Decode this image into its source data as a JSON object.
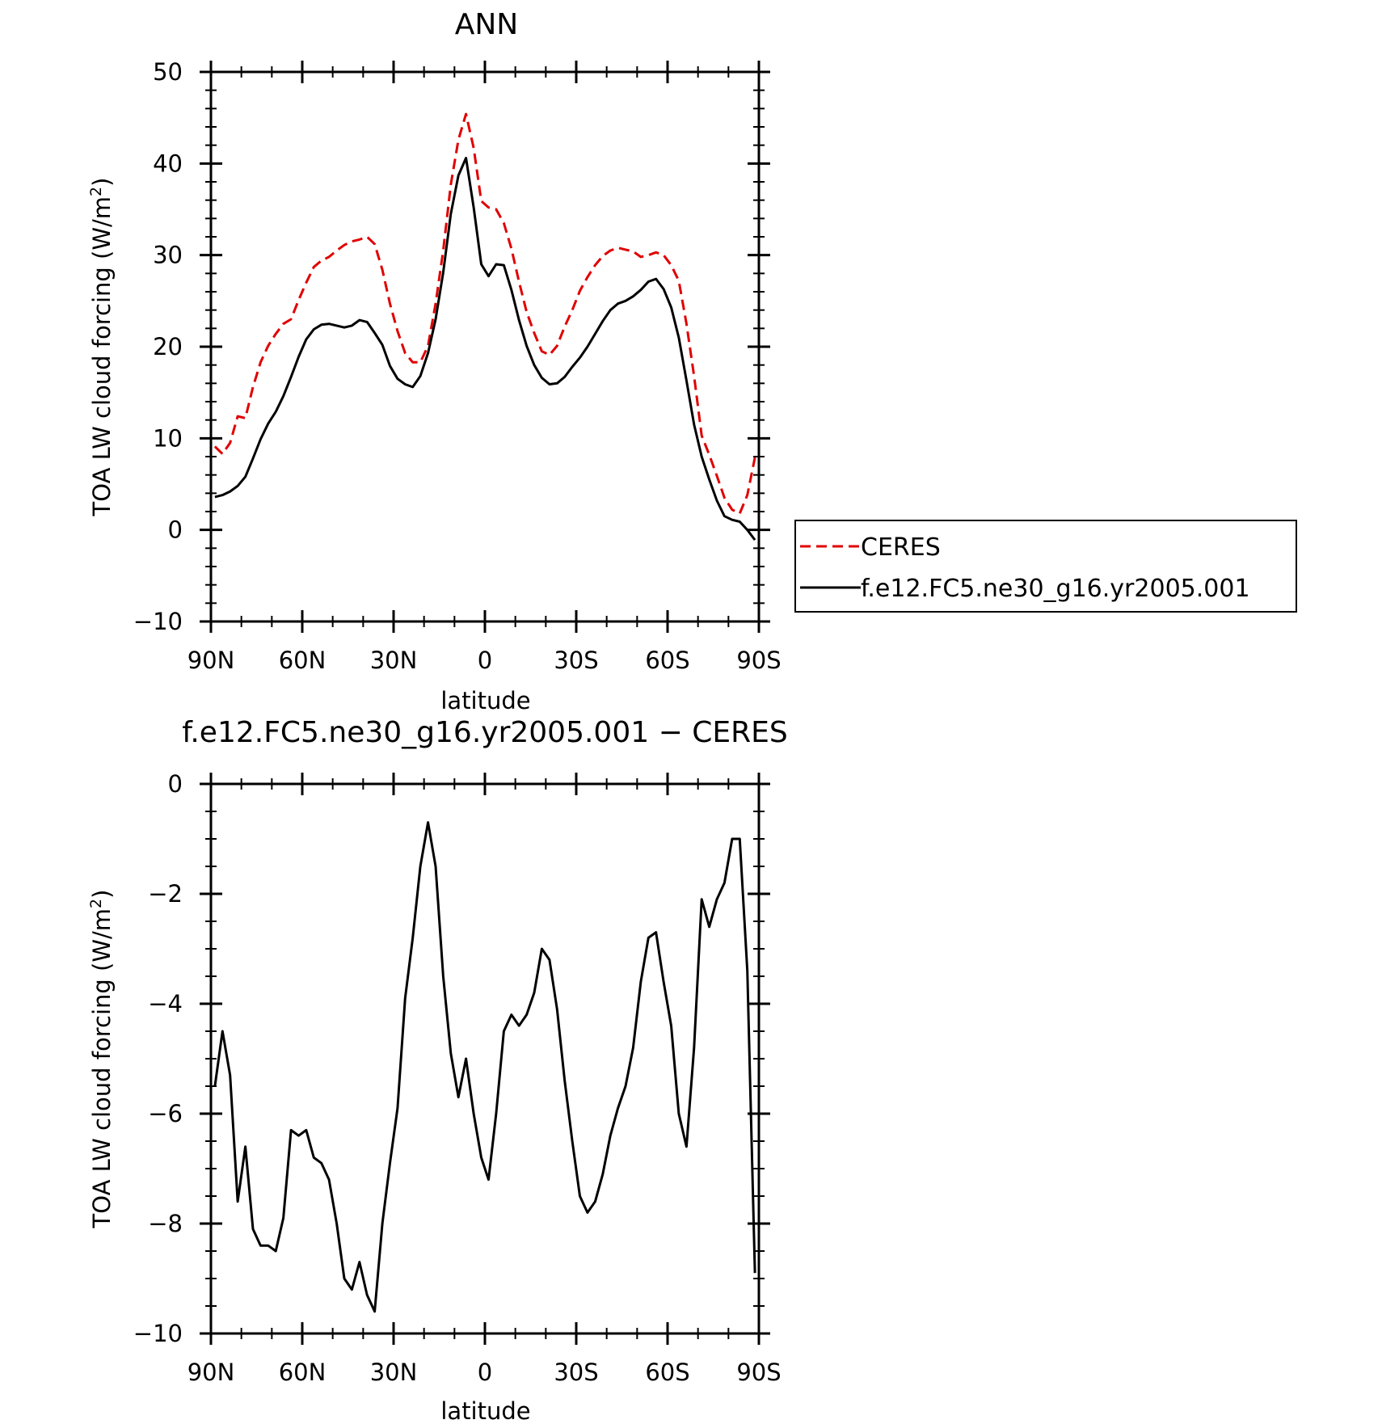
{
  "chart_data": [
    {
      "type": "line",
      "title": "ANN",
      "xlabel": "latitude",
      "ylabel": "TOA LW cloud forcing (W/m",
      "ylabel_superscript": "2",
      "ylabel_close": ")",
      "xlim": [
        90,
        -90
      ],
      "ylim": [
        -10,
        50
      ],
      "xticks": [
        90,
        60,
        30,
        0,
        -30,
        -60,
        -90
      ],
      "xtick_labels": [
        "90N",
        "60N",
        "30N",
        "0",
        "30S",
        "60S",
        "90S"
      ],
      "yticks": [
        -10,
        0,
        10,
        20,
        30,
        40,
        50
      ],
      "ytick_labels": [
        "−10",
        "0",
        "10",
        "20",
        "30",
        "40",
        "50"
      ],
      "grid": false,
      "legend": "outside-right",
      "series": [
        {
          "name": "CERES",
          "color": "#e00000",
          "dash": "dashed",
          "x": [
            88.7,
            86.2,
            83.7,
            81.2,
            78.7,
            76.2,
            73.7,
            71.2,
            68.7,
            66.2,
            63.7,
            61.2,
            58.7,
            56.2,
            53.7,
            51.2,
            48.7,
            46.2,
            43.7,
            41.2,
            38.7,
            36.2,
            33.7,
            31.2,
            28.7,
            26.2,
            23.7,
            21.2,
            18.7,
            16.2,
            13.7,
            11.2,
            8.7,
            6.2,
            3.7,
            1.2,
            -1.2,
            -3.7,
            -6.2,
            -8.7,
            -11.2,
            -13.7,
            -16.2,
            -18.7,
            -21.2,
            -23.7,
            -26.2,
            -28.7,
            -31.2,
            -33.7,
            -36.2,
            -38.7,
            -41.2,
            -43.7,
            -46.2,
            -48.7,
            -51.2,
            -53.7,
            -56.2,
            -58.7,
            -61.2,
            -63.7,
            -66.2,
            -68.7,
            -71.2,
            -73.7,
            -76.2,
            -78.7,
            -81.2,
            -83.7,
            -86.2,
            -88.7
          ],
          "y": [
            9.1,
            8.3,
            9.5,
            12.4,
            12.2,
            15.6,
            18.3,
            20.1,
            21.4,
            22.5,
            23.0,
            25.1,
            27.0,
            28.7,
            29.4,
            29.8,
            30.5,
            31.1,
            31.5,
            31.7,
            32.0,
            31.2,
            28.4,
            24.7,
            21.7,
            19.3,
            18.3,
            18.3,
            20.1,
            24.7,
            30.5,
            37.7,
            42.6,
            45.4,
            41.7,
            35.9,
            35.2,
            35.0,
            33.5,
            30.7,
            27.1,
            23.8,
            21.5,
            19.5,
            19.1,
            20.1,
            22.2,
            24.0,
            26.1,
            27.6,
            28.9,
            29.9,
            30.5,
            30.8,
            30.6,
            30.4,
            29.8,
            30.0,
            30.3,
            30.0,
            28.9,
            27.2,
            22.5,
            16.8,
            10.3,
            8.2,
            5.9,
            3.5,
            2.2,
            1.8,
            3.8,
            7.9
          ]
        },
        {
          "name": "f.e12.FC5.ne30_g16.yr2005.001",
          "color": "#000000",
          "dash": "solid",
          "x": [
            88.7,
            86.2,
            83.7,
            81.2,
            78.7,
            76.2,
            73.7,
            71.2,
            68.7,
            66.2,
            63.7,
            61.2,
            58.7,
            56.2,
            53.7,
            51.2,
            48.7,
            46.2,
            43.7,
            41.2,
            38.7,
            36.2,
            33.7,
            31.2,
            28.7,
            26.2,
            23.7,
            21.2,
            18.7,
            16.2,
            13.7,
            11.2,
            8.7,
            6.2,
            3.7,
            1.2,
            -1.2,
            -3.7,
            -6.2,
            -8.7,
            -11.2,
            -13.7,
            -16.2,
            -18.7,
            -21.2,
            -23.7,
            -26.2,
            -28.7,
            -31.2,
            -33.7,
            -36.2,
            -38.7,
            -41.2,
            -43.7,
            -46.2,
            -48.7,
            -51.2,
            -53.7,
            -56.2,
            -58.7,
            -61.2,
            -63.7,
            -66.2,
            -68.7,
            -71.2,
            -73.7,
            -76.2,
            -78.7,
            -81.2,
            -83.7,
            -86.2,
            -88.7
          ],
          "y": [
            3.6,
            3.8,
            4.2,
            4.8,
            5.8,
            7.8,
            9.9,
            11.6,
            12.9,
            14.6,
            16.7,
            18.9,
            20.8,
            21.9,
            22.4,
            22.5,
            22.3,
            22.1,
            22.3,
            22.9,
            22.7,
            21.5,
            20.2,
            17.9,
            16.5,
            15.9,
            15.6,
            16.8,
            19.3,
            23.0,
            28.1,
            34.5,
            38.7,
            40.6,
            35.2,
            29.0,
            27.7,
            29.0,
            28.9,
            26.2,
            22.9,
            20.1,
            18.0,
            16.6,
            15.9,
            16.0,
            16.7,
            17.8,
            18.8,
            20.0,
            21.4,
            22.8,
            24.0,
            24.7,
            25.0,
            25.5,
            26.2,
            27.1,
            27.4,
            26.3,
            24.3,
            21.0,
            16.3,
            11.5,
            8.0,
            5.5,
            3.2,
            1.5,
            1.1,
            0.9,
            0.0,
            -1.1
          ]
        }
      ]
    },
    {
      "type": "line",
      "title": "f.e12.FC5.ne30_g16.yr2005.001 − CERES",
      "xlabel": "latitude",
      "ylabel": "TOA LW cloud forcing (W/m",
      "ylabel_superscript": "2",
      "ylabel_close": ")",
      "xlim": [
        90,
        -90
      ],
      "ylim": [
        -10,
        0
      ],
      "xticks": [
        90,
        60,
        30,
        0,
        -30,
        -60,
        -90
      ],
      "xtick_labels": [
        "90N",
        "60N",
        "30N",
        "0",
        "30S",
        "60S",
        "90S"
      ],
      "yticks": [
        -10,
        -8,
        -6,
        -4,
        -2,
        0
      ],
      "ytick_labels": [
        "−10",
        "−8",
        "−6",
        "−4",
        "−2",
        "0"
      ],
      "grid": false,
      "series": [
        {
          "color": "#000000",
          "dash": "solid",
          "x": [
            88.7,
            86.2,
            83.7,
            81.2,
            78.7,
            76.2,
            73.7,
            71.2,
            68.7,
            66.2,
            63.7,
            61.2,
            58.7,
            56.2,
            53.7,
            51.2,
            48.7,
            46.2,
            43.7,
            41.2,
            38.7,
            36.2,
            33.7,
            31.2,
            28.7,
            26.2,
            23.7,
            21.2,
            18.7,
            16.2,
            13.7,
            11.2,
            8.7,
            6.2,
            3.7,
            1.2,
            -1.2,
            -3.7,
            -6.2,
            -8.7,
            -11.2,
            -13.7,
            -16.2,
            -18.7,
            -21.2,
            -23.7,
            -26.2,
            -28.7,
            -31.2,
            -33.7,
            -36.2,
            -38.7,
            -41.2,
            -43.7,
            -46.2,
            -48.7,
            -51.2,
            -53.7,
            -56.2,
            -58.7,
            -61.2,
            -63.7,
            -66.2,
            -68.7,
            -71.2,
            -73.7,
            -76.2,
            -78.7,
            -81.2,
            -83.7,
            -86.2,
            -88.7
          ],
          "y": [
            -5.5,
            -4.5,
            -5.3,
            -7.6,
            -6.6,
            -8.1,
            -8.4,
            -8.4,
            -8.5,
            -7.9,
            -6.3,
            -6.4,
            -6.3,
            -6.8,
            -6.9,
            -7.2,
            -8.0,
            -9.0,
            -9.2,
            -8.7,
            -9.3,
            -9.6,
            -8.0,
            -6.9,
            -5.9,
            -3.9,
            -2.8,
            -1.5,
            -0.7,
            -1.5,
            -3.5,
            -4.9,
            -5.7,
            -5.0,
            -6.0,
            -6.8,
            -7.2,
            -6.0,
            -4.5,
            -4.2,
            -4.4,
            -4.2,
            -3.8,
            -3.0,
            -3.2,
            -4.1,
            -5.4,
            -6.5,
            -7.5,
            -7.8,
            -7.6,
            -7.1,
            -6.4,
            -5.9,
            -5.5,
            -4.8,
            -3.6,
            -2.8,
            -2.7,
            -3.6,
            -4.4,
            -6.0,
            -6.6,
            -4.8,
            -2.1,
            -2.6,
            -2.1,
            -1.8,
            -1.0,
            -1.0,
            -3.4,
            -8.9
          ]
        }
      ]
    }
  ]
}
